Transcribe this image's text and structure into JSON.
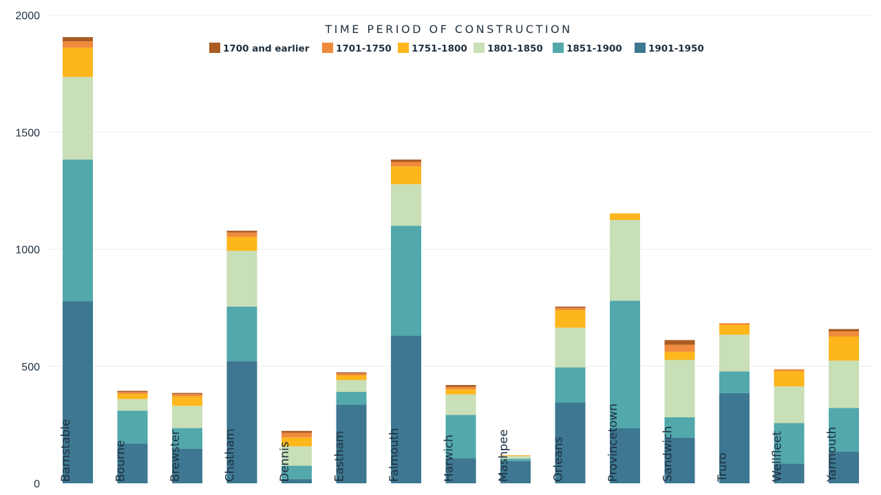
{
  "chart_data": {
    "type": "bar",
    "stacked": true,
    "legend_title": "TIME PERIOD OF CONSTRUCTION",
    "legend_position": "top-center",
    "title": "",
    "xlabel": "",
    "ylabel": "",
    "ylim": [
      0,
      2000
    ],
    "yticks": [
      0,
      500,
      1000,
      1500,
      2000
    ],
    "grid": true,
    "categories": [
      "Barnstable",
      "Bourne",
      "Brewster",
      "Chatham",
      "Dennis",
      "Eastham",
      "Falmouth",
      "Harwich",
      "Mashpee",
      "Orleans",
      "Provincetown",
      "Sandwich",
      "Truro",
      "Wellfleet",
      "Yarmouth"
    ],
    "series": [
      {
        "name": "1901-1950",
        "color": "#3d7791",
        "values": [
          778,
          170,
          148,
          522,
          18,
          336,
          630,
          107,
          95,
          345,
          235,
          195,
          385,
          84,
          135
        ]
      },
      {
        "name": "1851-1900",
        "color": "#52a8ab",
        "values": [
          605,
          140,
          88,
          233,
          57,
          55,
          470,
          185,
          10,
          150,
          545,
          87,
          93,
          173,
          187
        ]
      },
      {
        "name": "1801-1850",
        "color": "#c9dfb7",
        "values": [
          353,
          50,
          95,
          238,
          83,
          50,
          178,
          88,
          12,
          170,
          345,
          245,
          157,
          157,
          202
        ]
      },
      {
        "name": "1751-1800",
        "color": "#fdb61b",
        "values": [
          125,
          22,
          40,
          60,
          38,
          20,
          75,
          22,
          3,
          75,
          28,
          35,
          42,
          65,
          103
        ]
      },
      {
        "name": "1701-1750",
        "color": "#ef8b3c",
        "values": [
          27,
          8,
          10,
          18,
          20,
          8,
          20,
          10,
          0,
          10,
          0,
          30,
          7,
          8,
          22
        ]
      },
      {
        "name": "1700 and earlier",
        "color": "#a95c23",
        "values": [
          18,
          5,
          5,
          8,
          8,
          5,
          10,
          8,
          0,
          5,
          0,
          20,
          0,
          0,
          10
        ]
      }
    ],
    "legend_order": [
      "1700 and earlier",
      "1701-1750",
      "1751-1800",
      "1801-1850",
      "1851-1900",
      "1901-1950"
    ]
  }
}
